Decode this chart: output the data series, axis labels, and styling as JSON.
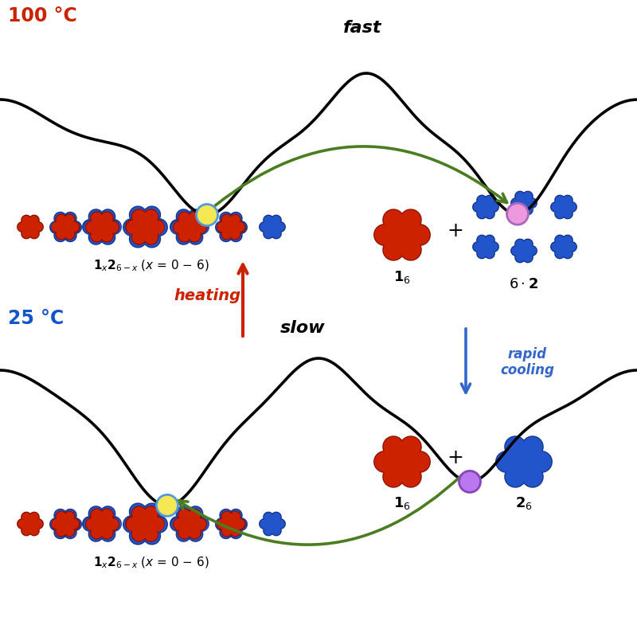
{
  "bg_color": "#ffffff",
  "temp_100_label": "100 °C",
  "temp_100_color": "#cc2200",
  "temp_25_label": "25 °C",
  "temp_25_color": "#1155cc",
  "fast_label": "fast",
  "slow_label": "slow",
  "heating_label": "heating",
  "rapid_cooling_label": "rapid\ncooling",
  "green_arrow_color": "#4a7c20",
  "red_arrow_color": "#cc2200",
  "blue_arrow_color": "#3366cc",
  "yellow_circle_color": "#f5e852",
  "yellow_circle_edge": "#5599dd",
  "pink_circle_color": "#ee99dd",
  "pink_circle_edge": "#aa66bb",
  "purple_circle_color": "#bb77ee",
  "purple_circle_edge": "#8844bb",
  "red_cube": "#cc2200",
  "red_cube_dark": "#881100",
  "blue_cube": "#2255cc",
  "blue_cube_dark": "#113388",
  "xlim": [
    0,
    8
  ],
  "ylim": [
    0,
    7.8
  ],
  "top_curve_y_offset": 5.5,
  "bot_curve_y_offset": 1.8
}
